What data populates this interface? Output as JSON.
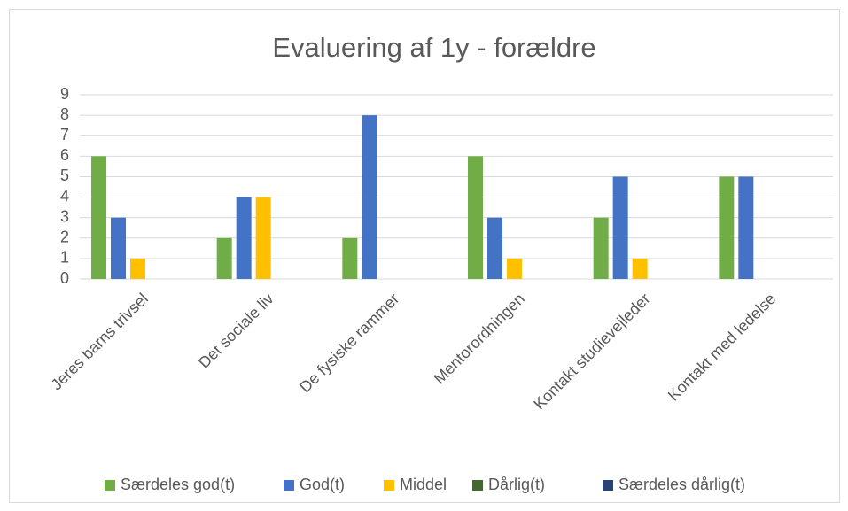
{
  "chart_data": {
    "type": "bar",
    "title": "Evaluering af 1y - forældre",
    "categories": [
      "Jeres barns trivsel",
      "Det sociale liv",
      "De fysiske rammer",
      "Mentorordningen",
      "Kontakt studievejleder",
      "Kontakt med ledelse"
    ],
    "series": [
      {
        "name": "Særdeles god(t)",
        "color": "#70ad47",
        "values": [
          6,
          2,
          2,
          6,
          3,
          5
        ]
      },
      {
        "name": "God(t)",
        "color": "#4472c4",
        "values": [
          3,
          4,
          8,
          3,
          5,
          5
        ]
      },
      {
        "name": "Middel",
        "color": "#ffc000",
        "values": [
          1,
          4,
          0,
          1,
          1,
          0
        ]
      },
      {
        "name": "Dårlig(t)",
        "color": "#43682b",
        "values": [
          0,
          0,
          0,
          0,
          0,
          0
        ]
      },
      {
        "name": "Særdeles dårlig(t)",
        "color": "#264478",
        "values": [
          0,
          0,
          0,
          0,
          0,
          0
        ]
      }
    ],
    "ylim": [
      0,
      9
    ],
    "yticks": [
      0,
      1,
      2,
      3,
      4,
      5,
      6,
      7,
      8,
      9
    ],
    "grid": true,
    "legend": "bottom"
  }
}
